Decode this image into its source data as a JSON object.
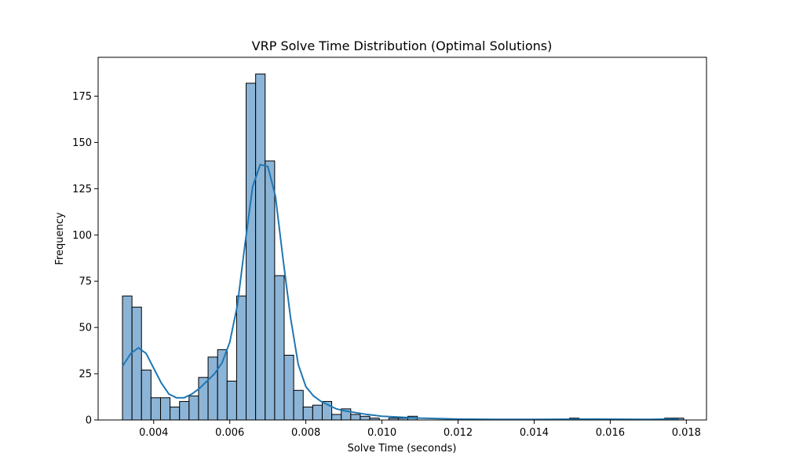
{
  "chart_data": {
    "type": "histogram",
    "title": "VRP Solve Time Distribution (Optimal Solutions)",
    "xlabel": "Solve Time (seconds)",
    "ylabel": "Frequency",
    "xlim": [
      0.00254,
      0.01853
    ],
    "ylim": [
      0,
      196
    ],
    "bin_start": 0.00318,
    "bin_width": 0.00025,
    "counts": [
      67,
      61,
      27,
      12,
      12,
      7,
      10,
      13,
      23,
      34,
      38,
      21,
      67,
      182,
      187,
      140,
      78,
      35,
      16,
      7,
      8,
      10,
      3,
      6,
      3,
      2,
      1,
      0,
      1,
      1,
      2,
      0,
      0,
      0,
      0,
      0,
      0,
      0,
      0,
      0,
      0,
      0,
      0,
      0,
      0,
      0,
      0,
      1,
      0,
      0,
      0,
      0,
      0,
      0,
      0,
      0,
      0,
      1,
      1
    ],
    "x_ticks": [
      0.004,
      0.006,
      0.008,
      0.01,
      0.012,
      0.014,
      0.016,
      0.018
    ],
    "x_tick_labels": [
      "0.004",
      "0.006",
      "0.008",
      "0.010",
      "0.012",
      "0.014",
      "0.016",
      "0.018"
    ],
    "y_ticks": [
      0,
      25,
      50,
      75,
      100,
      125,
      150,
      175
    ],
    "y_tick_labels": [
      "0",
      "25",
      "50",
      "75",
      "100",
      "125",
      "150",
      "175"
    ],
    "kde_series": {
      "name": "KDE",
      "x": [
        0.00318,
        0.0034,
        0.0036,
        0.0038,
        0.004,
        0.0042,
        0.0044,
        0.0046,
        0.0048,
        0.005,
        0.0052,
        0.0054,
        0.0056,
        0.0058,
        0.006,
        0.0062,
        0.0064,
        0.0066,
        0.0068,
        0.007,
        0.0072,
        0.0074,
        0.0076,
        0.0078,
        0.008,
        0.0082,
        0.0084,
        0.0086,
        0.0088,
        0.009,
        0.0093,
        0.0096,
        0.01,
        0.0105,
        0.011,
        0.012,
        0.013,
        0.014,
        0.015,
        0.0155,
        0.016,
        0.017,
        0.0175,
        0.0178
      ],
      "y": [
        29,
        36,
        39,
        36,
        28,
        20,
        14,
        12,
        12,
        14,
        17,
        21,
        25,
        31,
        42,
        62,
        95,
        126,
        138,
        137,
        121,
        87,
        55,
        30,
        18,
        13,
        10,
        8,
        6,
        5,
        4,
        3,
        2,
        1.5,
        1,
        0.5,
        0.3,
        0.3,
        0.4,
        0.5,
        0.4,
        0.3,
        0.5,
        0.4
      ]
    }
  }
}
